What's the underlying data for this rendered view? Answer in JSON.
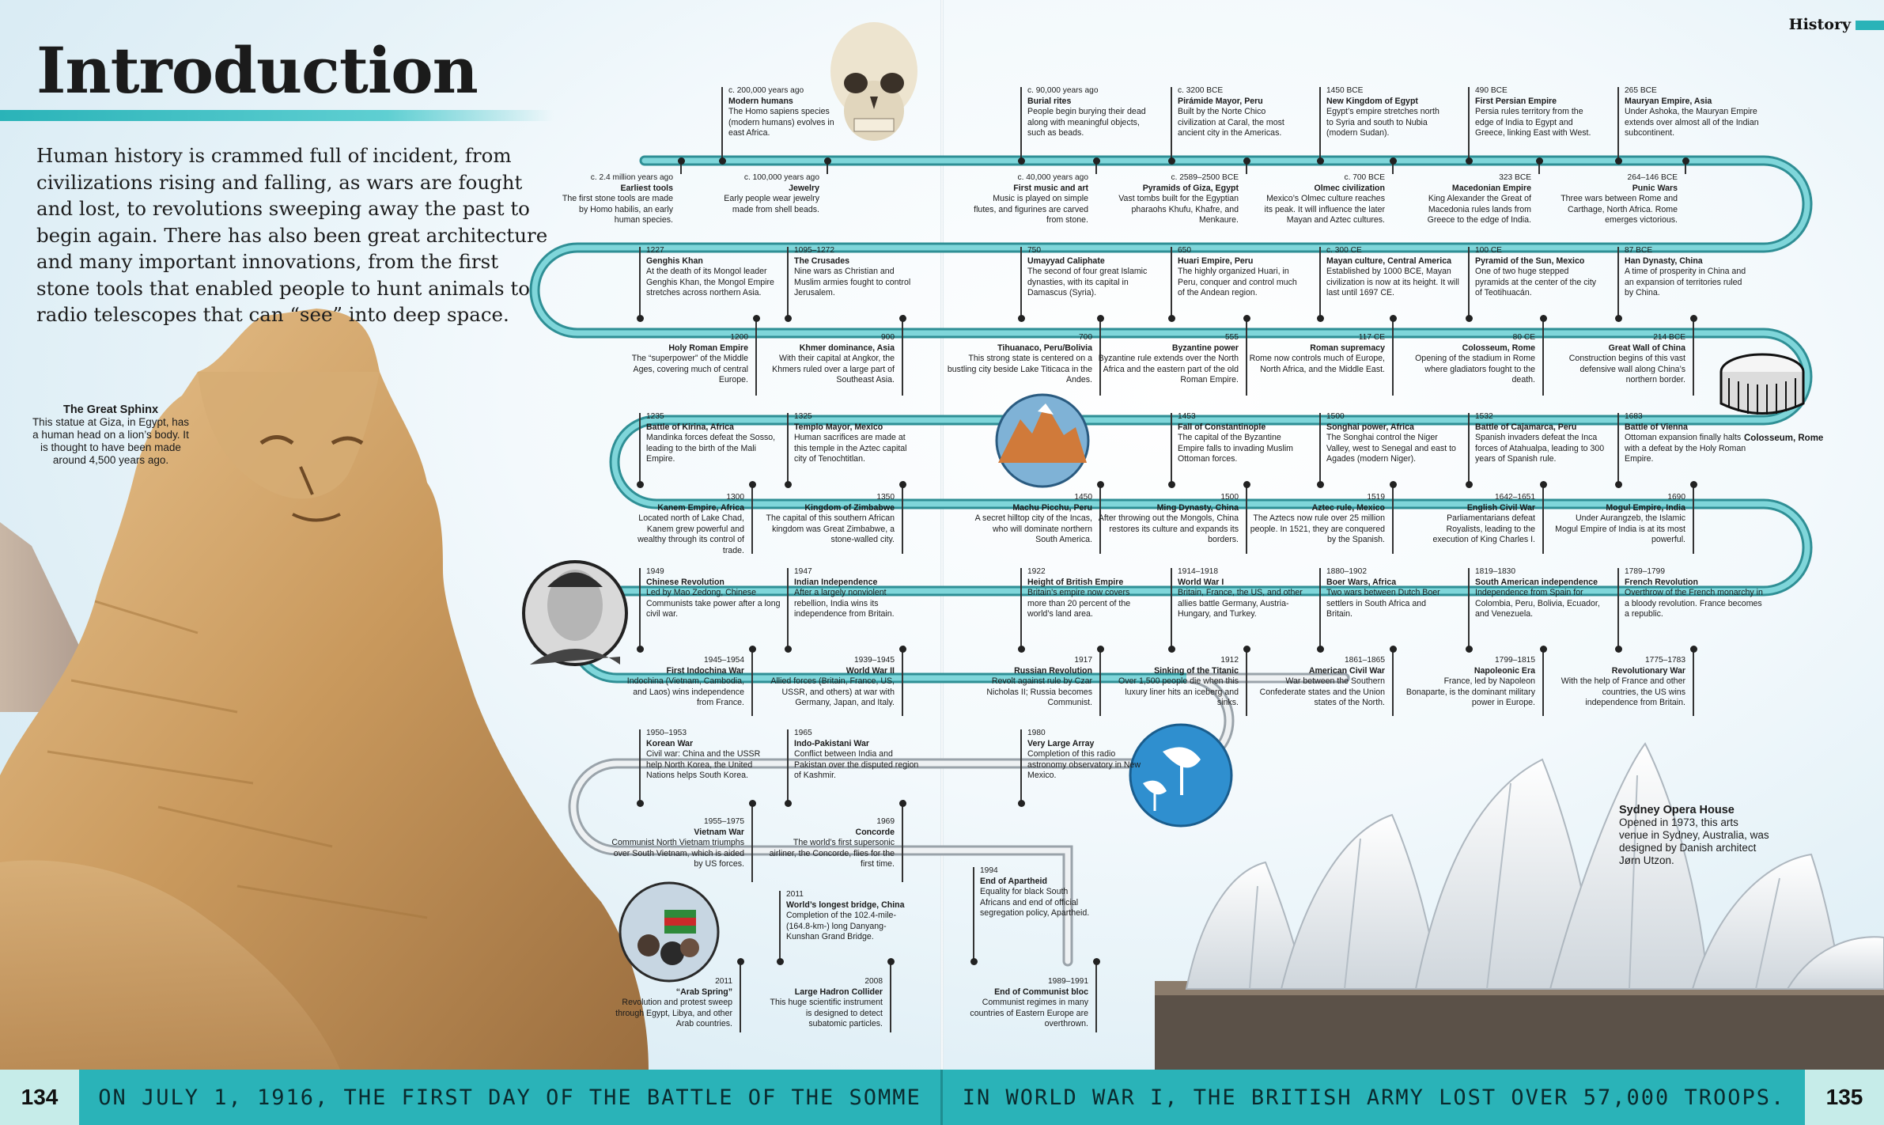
{
  "page_title": "Introduction",
  "section_label": "History",
  "intro_text": "Human history is crammed full of incident, from civilizations rising and falling, as wars are fought and lost, to revolutions sweeping away the past to begin again. There has also been great architecture and many important innovations, from the first stone tools that enabled people to hunt animals to radio telescopes that can “see” into deep space.",
  "captions": {
    "sphinx": {
      "title": "The Great Sphinx",
      "body": "This statue at Giza, in Egypt, has a human head on a lion’s body. It is thought to have been made around 4,500 years ago."
    },
    "colosseum": {
      "title": "Colosseum, Rome"
    },
    "opera": {
      "title": "Sydney Opera House",
      "body": "Opened in 1973, this arts venue in Sydney, Australia, was designed by Danish architect Jørn Utzon."
    }
  },
  "footer": {
    "left_page": "134",
    "right_page": "135",
    "left_fact": "ON JULY 1, 1916, THE FIRST DAY OF THE BATTLE OF THE SOMME",
    "right_fact": "IN WORLD WAR I, THE BRITISH ARMY LOST OVER 57,000 TROOPS."
  },
  "events": [
    {
      "date": "c. 200,000 years ago",
      "title": "Modern humans",
      "body": "The Homo sapiens species (modern humans) evolves in east Africa."
    },
    {
      "date": "c. 2.4 million years ago",
      "title": "Earliest tools",
      "body": "The first stone tools are made by Homo habilis, an early human species."
    },
    {
      "date": "c. 100,000 years ago",
      "title": "Jewelry",
      "body": "Early people wear jewelry made from shell beads."
    },
    {
      "date": "c. 90,000 years ago",
      "title": "Burial rites",
      "body": "People begin burying their dead along with meaningful objects, such as beads."
    },
    {
      "date": "c. 40,000 years ago",
      "title": "First music and art",
      "body": "Music is played on simple flutes, and figurines are carved from stone."
    },
    {
      "date": "c. 3200 BCE",
      "title": "Pirámide Mayor, Peru",
      "body": "Built by the Norte Chico civilization at Caral, the most ancient city in the Americas."
    },
    {
      "date": "c. 2589–2500 BCE",
      "title": "Pyramids of Giza, Egypt",
      "body": "Vast tombs built for the Egyptian pharaohs Khufu, Khafre, and Menkaure."
    },
    {
      "date": "1450 BCE",
      "title": "New Kingdom of Egypt",
      "body": "Egypt’s empire stretches north to Syria and south to Nubia (modern Sudan)."
    },
    {
      "date": "c. 700 BCE",
      "title": "Olmec civilization",
      "body": "Mexico’s Olmec culture reaches its peak. It will influence the later Mayan and Aztec cultures."
    },
    {
      "date": "490 BCE",
      "title": "First Persian Empire",
      "body": "Persia rules territory from the edge of India to Egypt and Greece, linking East with West."
    },
    {
      "date": "323 BCE",
      "title": "Macedonian Empire",
      "body": "King Alexander the Great of Macedonia rules lands from Greece to the edge of India."
    },
    {
      "date": "265 BCE",
      "title": "Mauryan Empire, Asia",
      "body": "Under Ashoka, the Mauryan Empire extends over almost all of the Indian subcontinent."
    },
    {
      "date": "264–146 BCE",
      "title": "Punic Wars",
      "body": "Three wars between Rome and Carthage, North Africa. Rome emerges victorious."
    },
    {
      "date": "1227",
      "title": "Genghis Khan",
      "body": "At the death of its Mongol leader Genghis Khan, the Mongol Empire stretches across northern Asia."
    },
    {
      "date": "1095–1272",
      "title": "The Crusades",
      "body": "Nine wars as Christian and Muslim armies fought to control Jerusalem."
    },
    {
      "date": "750",
      "title": "Umayyad Caliphate",
      "body": "The second of four great Islamic dynasties, with its capital in Damascus (Syria)."
    },
    {
      "date": "650",
      "title": "Huari Empire, Peru",
      "body": "The highly organized Huari, in Peru, conquer and control much of the Andean region."
    },
    {
      "date": "c. 300 CE",
      "title": "Mayan culture, Central America",
      "body": "Established by 1000 BCE, Mayan civilization is now at its height. It will last until 1697 CE."
    },
    {
      "date": "100 CE",
      "title": "Pyramid of the Sun, Mexico",
      "body": "One of two huge stepped pyramids at the center of the city of Teotihuacán."
    },
    {
      "date": "87 BCE",
      "title": "Han Dynasty, China",
      "body": "A time of prosperity in China and an expansion of territories ruled by China."
    },
    {
      "date": "1200",
      "title": "Holy Roman Empire",
      "body": "The “superpower” of the Middle Ages, covering much of central Europe."
    },
    {
      "date": "900",
      "title": "Khmer dominance, Asia",
      "body": "With their capital at Angkor, the Khmers ruled over a large part of Southeast Asia."
    },
    {
      "date": "700",
      "title": "Tihuanaco, Peru/Bolivia",
      "body": "This strong state is centered on a bustling city beside Lake Titicaca in the Andes."
    },
    {
      "date": "555",
      "title": "Byzantine power",
      "body": "Byzantine rule extends over the North Africa and the eastern part of the old Roman Empire."
    },
    {
      "date": "117 CE",
      "title": "Roman supremacy",
      "body": "Rome now controls much of Europe, North Africa, and the Middle East."
    },
    {
      "date": "80 CE",
      "title": "Colosseum, Rome",
      "body": "Opening of the stadium in Rome where gladiators fought to the death."
    },
    {
      "date": "214 BCE",
      "title": "Great Wall of China",
      "body": "Construction begins of this vast defensive wall along China’s northern border."
    },
    {
      "date": "1235",
      "title": "Battle of Kirina, Africa",
      "body": "Mandinka forces defeat the Sosso, leading to the birth of the Mali Empire."
    },
    {
      "date": "1325",
      "title": "Templo Mayor, Mexico",
      "body": "Human sacrifices are made at this temple in the Aztec capital city of Tenochtitlan."
    },
    {
      "date": "1453",
      "title": "Fall of Constantinople",
      "body": "The capital of the Byzantine Empire falls to invading Muslim Ottoman forces."
    },
    {
      "date": "1500",
      "title": "Songhai power, Africa",
      "body": "The Songhai control the Niger Valley, west to Senegal and east to Agades (modern Niger)."
    },
    {
      "date": "1532",
      "title": "Battle of Cajamarca, Peru",
      "body": "Spanish invaders defeat the Inca forces of Atahualpa, leading to 300 years of Spanish rule."
    },
    {
      "date": "1683",
      "title": "Battle of Vienna",
      "body": "Ottoman expansion finally halts with a defeat by the Holy Roman Empire."
    },
    {
      "date": "1300",
      "title": "Kanem Empire, Africa",
      "body": "Located north of Lake Chad, Kanem grew powerful and wealthy through its control of trade."
    },
    {
      "date": "1350",
      "title": "Kingdom of Zimbabwe",
      "body": "The capital of this southern African kingdom was Great Zimbabwe, a stone-walled city."
    },
    {
      "date": "1450",
      "title": "Machu Picchu, Peru",
      "body": "A secret hilltop city of the Incas, who will dominate northern South America."
    },
    {
      "date": "1500",
      "title": "Ming Dynasty, China",
      "body": "After throwing out the Mongols, China restores its culture and expands its borders."
    },
    {
      "date": "1519",
      "title": "Aztec rule, Mexico",
      "body": "The Aztecs now rule over 25 million people. In 1521, they are conquered by the Spanish."
    },
    {
      "date": "1642–1651",
      "title": "English Civil War",
      "body": "Parliamentarians defeat Royalists, leading to the execution of King Charles I."
    },
    {
      "date": "1690",
      "title": "Mogul Empire, India",
      "body": "Under Aurangzeb, the Islamic Mogul Empire of India is at its most powerful."
    },
    {
      "date": "1949",
      "title": "Chinese Revolution",
      "body": "Led by Mao Zedong, Chinese Communists take power after a long civil war."
    },
    {
      "date": "1947",
      "title": "Indian Independence",
      "body": "After a largely nonviolent rebellion, India wins its independence from Britain."
    },
    {
      "date": "1922",
      "title": "Height of British Empire",
      "body": "Britain’s empire now covers more than 20 percent of the world’s land area."
    },
    {
      "date": "1914–1918",
      "title": "World War I",
      "body": "Britain, France, the US, and other allies battle Germany, Austria-Hungary, and Turkey."
    },
    {
      "date": "1880–1902",
      "title": "Boer Wars, Africa",
      "body": "Two wars between Dutch Boer settlers in South Africa and Britain."
    },
    {
      "date": "1819–1830",
      "title": "South American independence",
      "body": "Independence from Spain for Colombia, Peru, Bolivia, Ecuador, and Venezuela."
    },
    {
      "date": "1789–1799",
      "title": "French Revolution",
      "body": "Overthrow of the French monarchy in a bloody revolution. France becomes a republic."
    },
    {
      "date": "1945–1954",
      "title": "First Indochina War",
      "body": "Indochina (Vietnam, Cambodia, and Laos) wins independence from France."
    },
    {
      "date": "1939–1945",
      "title": "World War II",
      "body": "Allied forces (Britain, France, US, USSR, and others) at war with Germany, Japan, and Italy."
    },
    {
      "date": "1917",
      "title": "Russian Revolution",
      "body": "Revolt against rule by Czar Nicholas II; Russia becomes Communist."
    },
    {
      "date": "1912",
      "title": "Sinking of the Titanic",
      "body": "Over 1,500 people die when this luxury liner hits an iceberg and sinks."
    },
    {
      "date": "1861–1865",
      "title": "American Civil War",
      "body": "War between the Southern Confederate states and the Union states of the North."
    },
    {
      "date": "1799–1815",
      "title": "Napoleonic Era",
      "body": "France, led by Napoleon Bonaparte, is the dominant military power in Europe."
    },
    {
      "date": "1775–1783",
      "title": "Revolutionary War",
      "body": "With the help of France and other countries, the US wins independence from Britain."
    },
    {
      "date": "1950–1953",
      "title": "Korean War",
      "body": "Civil war: China and the USSR help North Korea, the United Nations helps South Korea."
    },
    {
      "date": "1965",
      "title": "Indo-Pakistani War",
      "body": "Conflict between India and Pakistan over the disputed region of Kashmir."
    },
    {
      "date": "1980",
      "title": "Very Large Array",
      "body": "Completion of this radio astronomy observatory in New Mexico."
    },
    {
      "date": "1955–1975",
      "title": "Vietnam War",
      "body": "Communist North Vietnam triumphs over South Vietnam, which is aided by US forces."
    },
    {
      "date": "1969",
      "title": "Concorde",
      "body": "The world’s first supersonic airliner, the Concorde, flies for the first time."
    },
    {
      "date": "1994",
      "title": "End of Apartheid",
      "body": "Equality for black South Africans and end of official segregation policy, Apartheid."
    },
    {
      "date": "2011",
      "title": "World’s longest bridge, China",
      "body": "Completion of the 102.4-mile- (164.8-km-) long Danyang-Kunshan Grand Bridge."
    },
    {
      "date": "2011",
      "title": "“Arab Spring”",
      "body": "Revolution and protest sweep through Egypt, Libya, and other Arab countries."
    },
    {
      "date": "2008",
      "title": "Large Hadron Collider",
      "body": "This huge scientific instrument is designed to detect subatomic particles."
    },
    {
      "date": "1989–1991",
      "title": "End of Communist bloc",
      "body": "Communist regimes in many countries of Eastern Europe are overthrown."
    }
  ],
  "colors": {
    "accent": "#2ab3b8",
    "track": "#3aa7ad",
    "footer_box": "#c6ece9"
  },
  "icons": [
    "skull-icon",
    "andes-mountains-icon",
    "mao-portrait-icon",
    "radio-telescope-icon",
    "arab-spring-crowd-icon",
    "colosseum-icon"
  ]
}
